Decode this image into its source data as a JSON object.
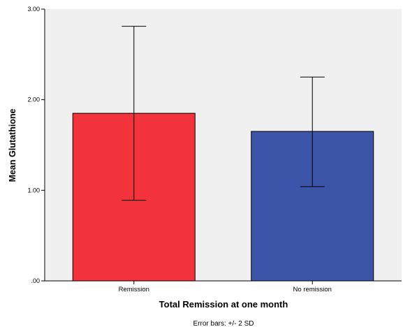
{
  "chart_data": {
    "type": "bar",
    "categories": [
      "Remission",
      "No remission"
    ],
    "values": [
      1.85,
      1.65
    ],
    "error_bars": [
      {
        "low": 0.89,
        "high": 2.81
      },
      {
        "low": 1.04,
        "high": 2.25
      }
    ],
    "xlabel": "Total Remission at one month",
    "ylabel": "Mean Glutathione",
    "ylim": [
      0,
      3.0
    ],
    "yticks": [
      0,
      1,
      2,
      3
    ],
    "ytick_labels": [
      ".00",
      "1.00",
      "2.00",
      "3.00"
    ],
    "grid": false,
    "footnote": "Error bars: +/- 2 SD",
    "colors": {
      "plot_background": "#f0f0f0",
      "bars": [
        "#f2333b",
        "#3d55a8"
      ],
      "bar_stroke": "#000000",
      "error_bar": "#000000"
    }
  }
}
